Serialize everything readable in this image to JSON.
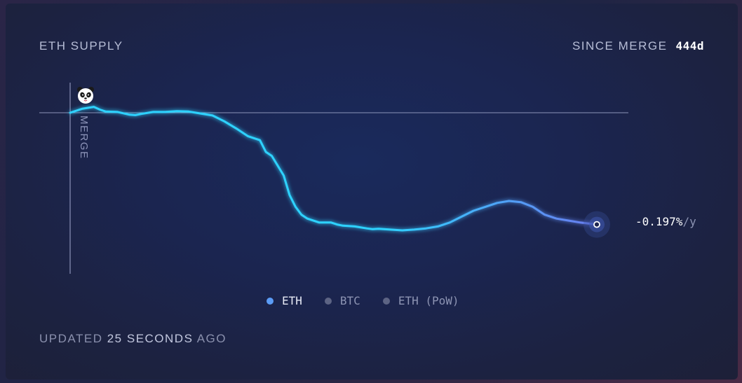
{
  "header": {
    "title": "ETH SUPPLY",
    "since_label": "SINCE MERGE",
    "since_value": "444d"
  },
  "end_label": {
    "value": "-0.197%",
    "unit": "/y"
  },
  "legend": [
    {
      "label": "ETH",
      "color": "#5b9cf6",
      "active": true
    },
    {
      "label": "BTC",
      "color": "#5d6484",
      "active": false
    },
    {
      "label": "ETH (PoW)",
      "color": "#5d6484",
      "active": false
    }
  ],
  "footer": {
    "prefix": "UPDATED",
    "amount": "25 SECONDS",
    "suffix": "AGO"
  },
  "colors": {
    "line_start": "#2fd2ff",
    "line_end": "#6a7cf0",
    "reference_line": "#8c93b8",
    "merge_marker": "#8c93b8"
  },
  "chart_data": {
    "type": "line",
    "title": "ETH SUPPLY",
    "marker_label": "MERGE",
    "x_unit": "days since merge",
    "y_unit": "supply change relative to merge (relative units)",
    "xlim": [
      0,
      444
    ],
    "ylim": [
      -0.45,
      0.05
    ],
    "baseline": 0,
    "series": [
      {
        "name": "ETH",
        "x": [
          0,
          10,
          20,
          25,
          30,
          40,
          50,
          55,
          60,
          70,
          80,
          90,
          100,
          110,
          120,
          130,
          140,
          150,
          160,
          165,
          170,
          175,
          180,
          185,
          190,
          195,
          200,
          210,
          215,
          220,
          225,
          230,
          240,
          250,
          255,
          260,
          270,
          280,
          290,
          300,
          310,
          320,
          330,
          340,
          350,
          360,
          370,
          380,
          390,
          400,
          410,
          420,
          430,
          444
        ],
        "y": [
          0.0,
          0.01,
          0.015,
          0.008,
          0.003,
          0.002,
          -0.005,
          -0.006,
          -0.003,
          0.002,
          0.002,
          0.004,
          0.003,
          -0.002,
          -0.007,
          -0.022,
          -0.04,
          -0.06,
          -0.07,
          -0.1,
          -0.11,
          -0.135,
          -0.16,
          -0.21,
          -0.24,
          -0.26,
          -0.27,
          -0.28,
          -0.28,
          -0.28,
          -0.285,
          -0.288,
          -0.29,
          -0.295,
          -0.297,
          -0.296,
          -0.298,
          -0.3,
          -0.298,
          -0.295,
          -0.29,
          -0.28,
          -0.265,
          -0.25,
          -0.24,
          -0.23,
          -0.225,
          -0.228,
          -0.24,
          -0.26,
          -0.27,
          -0.275,
          -0.28,
          -0.285
        ]
      }
    ],
    "end_value_label": "-0.197%/y",
    "grid": false,
    "legend_position": "bottom-center"
  }
}
